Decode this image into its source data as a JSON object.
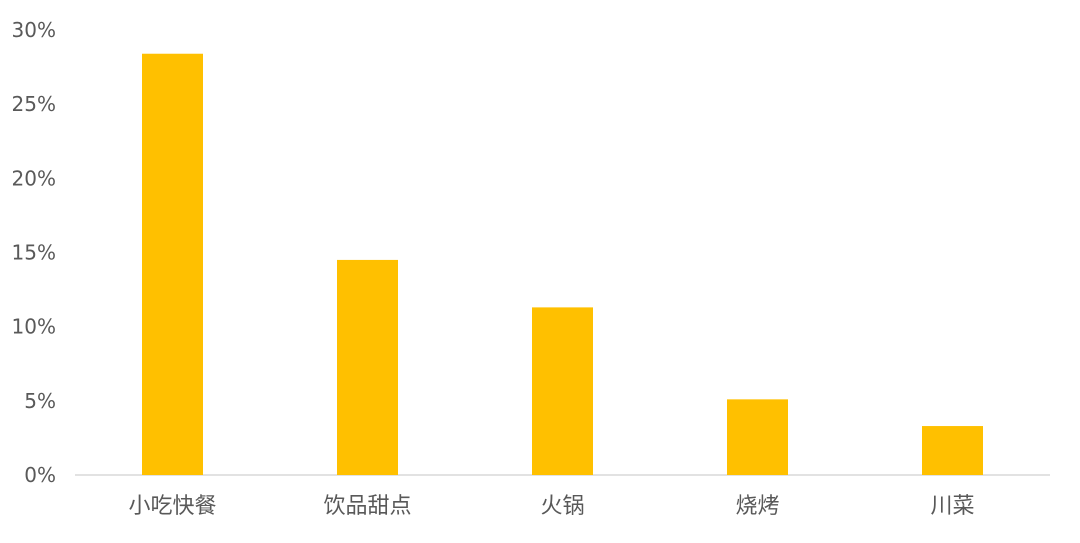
{
  "chart_data": {
    "type": "bar",
    "categories": [
      "小吃快餐",
      "饮品甜点",
      "火锅",
      "烧烤",
      "川菜"
    ],
    "values": [
      28.4,
      14.5,
      11.3,
      5.1,
      3.3
    ],
    "unit": "%",
    "title": "",
    "xlabel": "",
    "ylabel": "",
    "ylim": [
      0,
      30
    ],
    "yticks": [
      "0%",
      "5%",
      "10%",
      "15%",
      "20%",
      "25%",
      "30%"
    ],
    "grid": false,
    "legend": "none",
    "bar_color": "#FFC000",
    "axis_color": "#D9D9D9",
    "label_color": "#595959"
  }
}
